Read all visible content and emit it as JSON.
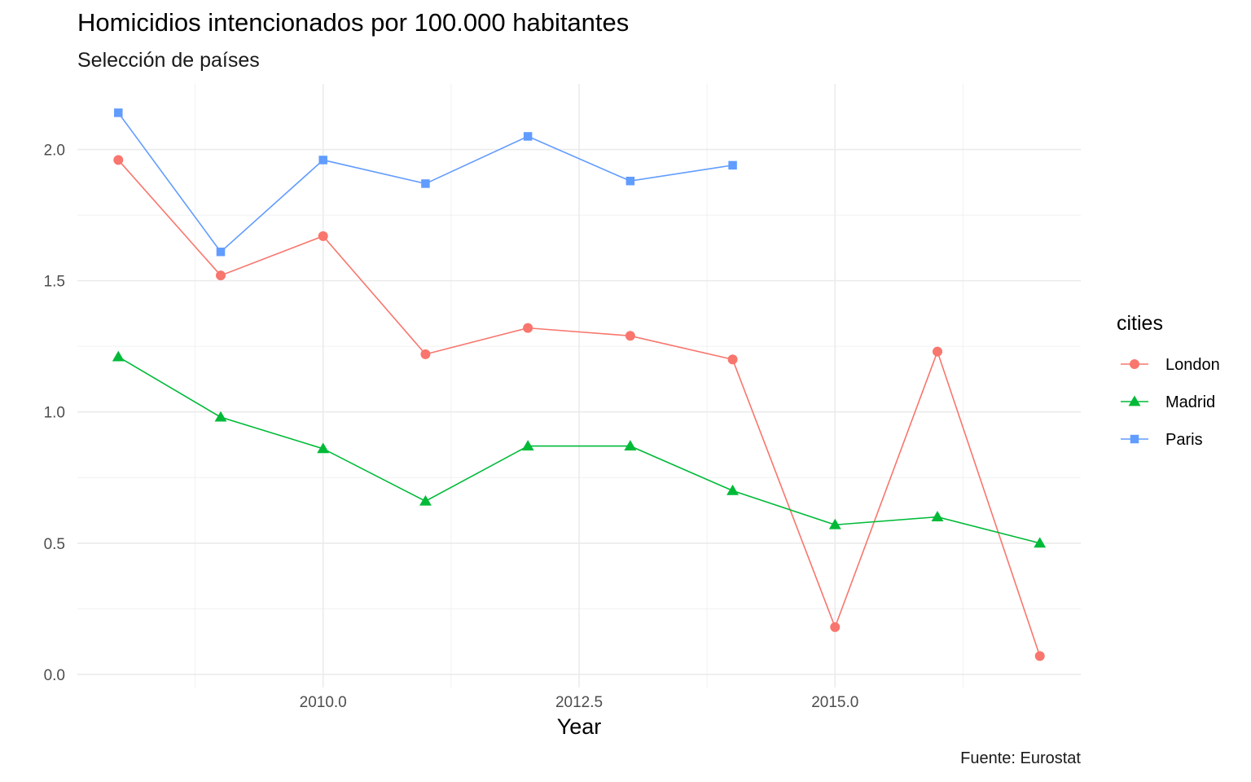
{
  "chart_data": {
    "type": "line",
    "title": "Homicidios intencionados por 100.000 habitantes",
    "subtitle": "Selección de países",
    "caption": "Fuente: Eurostat",
    "xlabel": "Year",
    "ylabel": "",
    "xlim": [
      2007.6,
      2017.4
    ],
    "ylim": [
      -0.05,
      2.25
    ],
    "x_ticks": [
      2010.0,
      2012.5,
      2015.0
    ],
    "x_tick_labels": [
      "2010.0",
      "2012.5",
      "2015.0"
    ],
    "y_ticks": [
      0.0,
      0.5,
      1.0,
      1.5,
      2.0
    ],
    "y_tick_labels": [
      "0.0",
      "0.5",
      "1.0",
      "1.5",
      "2.0"
    ],
    "grid": true,
    "legend_title": "cities",
    "legend_position": "right",
    "series": [
      {
        "name": "London",
        "color": "#F8766D",
        "marker": "circle",
        "x": [
          2008,
          2009,
          2010,
          2011,
          2012,
          2013,
          2014,
          2015,
          2016,
          2017
        ],
        "values": [
          1.96,
          1.52,
          1.67,
          1.22,
          1.32,
          1.29,
          1.2,
          0.18,
          1.23,
          0.07
        ]
      },
      {
        "name": "Madrid",
        "color": "#00BA38",
        "marker": "triangle",
        "x": [
          2008,
          2009,
          2010,
          2011,
          2012,
          2013,
          2014,
          2015,
          2016,
          2017
        ],
        "values": [
          1.21,
          0.98,
          0.86,
          0.66,
          0.87,
          0.87,
          0.7,
          0.57,
          0.6,
          0.5
        ]
      },
      {
        "name": "Paris",
        "color": "#619CFF",
        "marker": "square",
        "x": [
          2008,
          2009,
          2010,
          2011,
          2012,
          2013,
          2014
        ],
        "values": [
          2.14,
          1.61,
          1.96,
          1.87,
          2.05,
          1.88,
          1.94
        ]
      }
    ]
  }
}
